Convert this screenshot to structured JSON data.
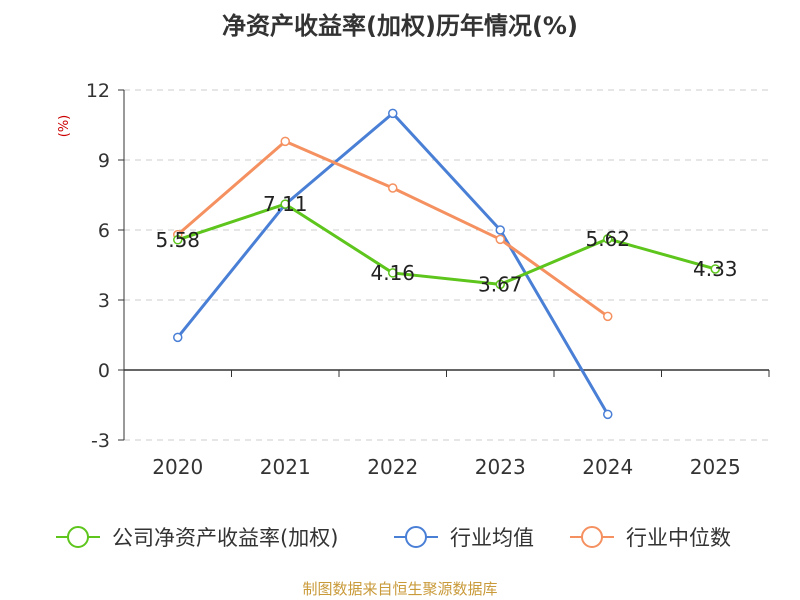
{
  "chart_data": {
    "type": "line",
    "title": "净资产收益率(加权)历年情况(%)",
    "ylabel": "(%)",
    "categories": [
      "2020",
      "2021",
      "2022",
      "2023",
      "2024",
      "2025"
    ],
    "ylim": [
      -3,
      12
    ],
    "yticks": [
      -3,
      0,
      3,
      6,
      9,
      12
    ],
    "grid": true,
    "legend_position": "bottom",
    "series": [
      {
        "name": "公司净资产收益率(加权)",
        "color": "#5dc51c",
        "values": [
          5.58,
          7.11,
          4.16,
          3.67,
          5.62,
          4.33
        ],
        "labels": [
          "5.58",
          "7.11",
          "4.16",
          "3.67",
          "5.62",
          "4.33"
        ]
      },
      {
        "name": "行业均值",
        "color": "#4a7fd6",
        "values": [
          1.4,
          7.1,
          11.0,
          6.0,
          -1.9,
          null
        ]
      },
      {
        "name": "行业中位数",
        "color": "#f59160",
        "values": [
          5.8,
          9.8,
          7.8,
          5.6,
          2.3,
          null
        ]
      }
    ],
    "source": "制图数据来自恒生聚源数据库"
  }
}
